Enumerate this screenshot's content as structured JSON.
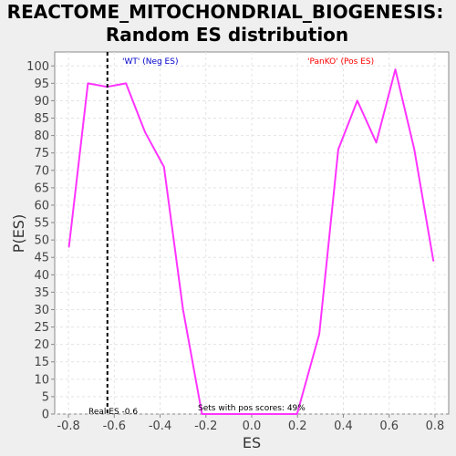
{
  "chart_data": {
    "type": "line",
    "title": "REACTOME_MITOCHONDRIAL_BIOGENESIS:",
    "subtitle": "Random ES distribution",
    "xlabel": "ES",
    "ylabel": "P(ES)",
    "xlim": [
      -0.86,
      0.86
    ],
    "ylim": [
      0,
      104
    ],
    "x_ticks": [
      -0.8,
      -0.6,
      -0.4,
      -0.2,
      0.0,
      0.2,
      0.4,
      0.6,
      0.8
    ],
    "x_tick_labels": [
      "-0.8",
      "-0.6",
      "-0.4",
      "-0.2",
      "0.0",
      "0.2",
      "0.4",
      "0.6",
      "0.8"
    ],
    "y_ticks": [
      0,
      5,
      10,
      15,
      20,
      25,
      30,
      35,
      40,
      45,
      50,
      55,
      60,
      65,
      70,
      75,
      80,
      85,
      90,
      95,
      100
    ],
    "grid": true,
    "series": [
      {
        "color": "#ff33ff",
        "x": [
          -0.798,
          -0.715,
          -0.632,
          -0.549,
          -0.466,
          -0.383,
          -0.3,
          -0.217,
          -0.134,
          -0.051,
          0.032,
          0.115,
          0.198,
          0.295,
          0.378,
          0.461,
          0.544,
          0.627,
          0.71,
          0.793
        ],
        "y": [
          48,
          95,
          94,
          95,
          81,
          71,
          30,
          0,
          0,
          0,
          0,
          0,
          0,
          23,
          76,
          90,
          78,
          99,
          76,
          44
        ]
      }
    ],
    "reference_line": {
      "x": -0.63,
      "style": "dashed",
      "color": "#000000"
    },
    "annotations": {
      "neg_label": "'WT' (Neg ES)",
      "neg_color": "#0000cc",
      "pos_label": "'PanKO' (Pos ES)",
      "pos_color": "#ff0000",
      "real_es": "Real ES -0.6",
      "pos_scores": "Sets with pos scores: 49%"
    }
  }
}
